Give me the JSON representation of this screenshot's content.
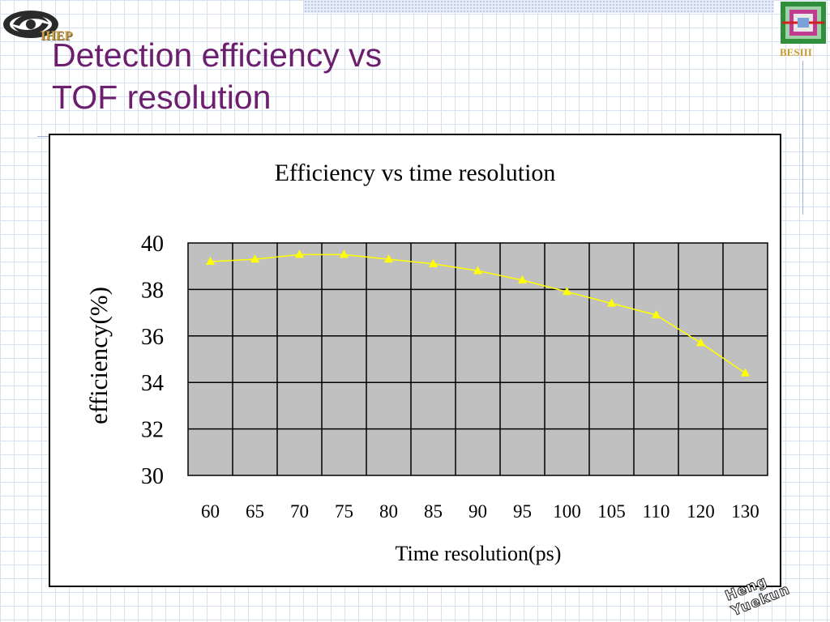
{
  "slide": {
    "title_line1": "Detection efficiency vs",
    "title_line2": "TOF resolution",
    "logo_left": "IHEP",
    "logo_right": "BESIII",
    "signature": "Heng Yuekun"
  },
  "colors": {
    "title": "#6b1f6e",
    "plot_background": "#c0c0c0",
    "series": "#ffff00"
  },
  "chart_data": {
    "type": "line",
    "title": "Efficiency vs time resolution",
    "xlabel": "Time resolution(ps)",
    "ylabel": "efficiency(%)",
    "categories": [
      "60",
      "65",
      "70",
      "75",
      "80",
      "85",
      "90",
      "95",
      "100",
      "105",
      "110",
      "120",
      "130"
    ],
    "series": [
      {
        "values": [
          39.2,
          39.3,
          39.5,
          39.5,
          39.3,
          39.1,
          38.8,
          38.4,
          37.9,
          37.4,
          36.9,
          35.7,
          34.4
        ]
      }
    ],
    "ylim": [
      30,
      40
    ],
    "yticks": [
      "30",
      "32",
      "34",
      "36",
      "38",
      "40"
    ],
    "grid": true,
    "legend": "none",
    "marker": "triangle"
  }
}
